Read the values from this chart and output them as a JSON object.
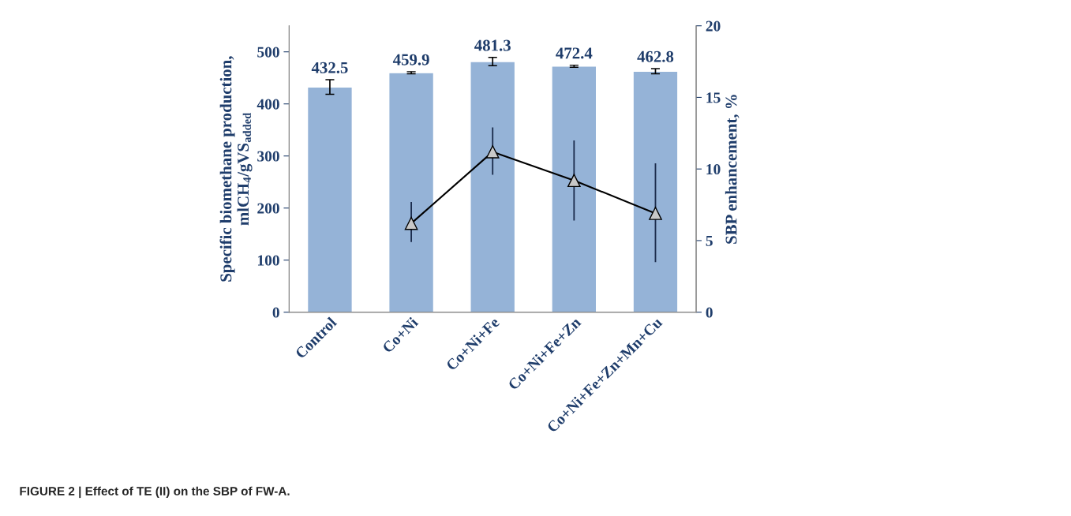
{
  "chart_data": {
    "type": "bar",
    "ylabel": "Specific biomethane production,\nmlCH$_{4}$/gVS$_{added}$",
    "y2label": "SBP enhancement, %",
    "categories": [
      "Control",
      "Co+Ni",
      "Co+Ni+Fe",
      "Co+Ni+Fe+Zn",
      "Co+Ni+Fe+Zn+Mn+Cu"
    ],
    "series": [
      {
        "color": "#95b3d7",
        "values": [
          432.5,
          459.9,
          481.3,
          472.4,
          462.8
        ],
        "errors": [
          14,
          2,
          8,
          2,
          5
        ],
        "data_labels": true
      },
      {
        "type": "line",
        "axis": "y2",
        "color": "#000000",
        "marker": "triangle",
        "values": [
          null,
          6.2,
          11.2,
          9.2,
          6.9
        ],
        "errors": [
          null,
          [
            4.9,
            7.7
          ],
          [
            9.6,
            12.9
          ],
          [
            6.4,
            12.0
          ],
          [
            3.5,
            10.4
          ]
        ]
      }
    ],
    "ylim": [
      0,
      550
    ],
    "yticks": [
      0,
      100,
      200,
      300,
      400,
      500
    ],
    "y2lim": [
      0,
      20
    ],
    "y2ticks": [
      0,
      5,
      10,
      15,
      20
    ],
    "grid": false,
    "legend": false,
    "annotations": [
      "FIGURE 2 | Effect of TE (II) on the SBP of FW-A."
    ]
  }
}
